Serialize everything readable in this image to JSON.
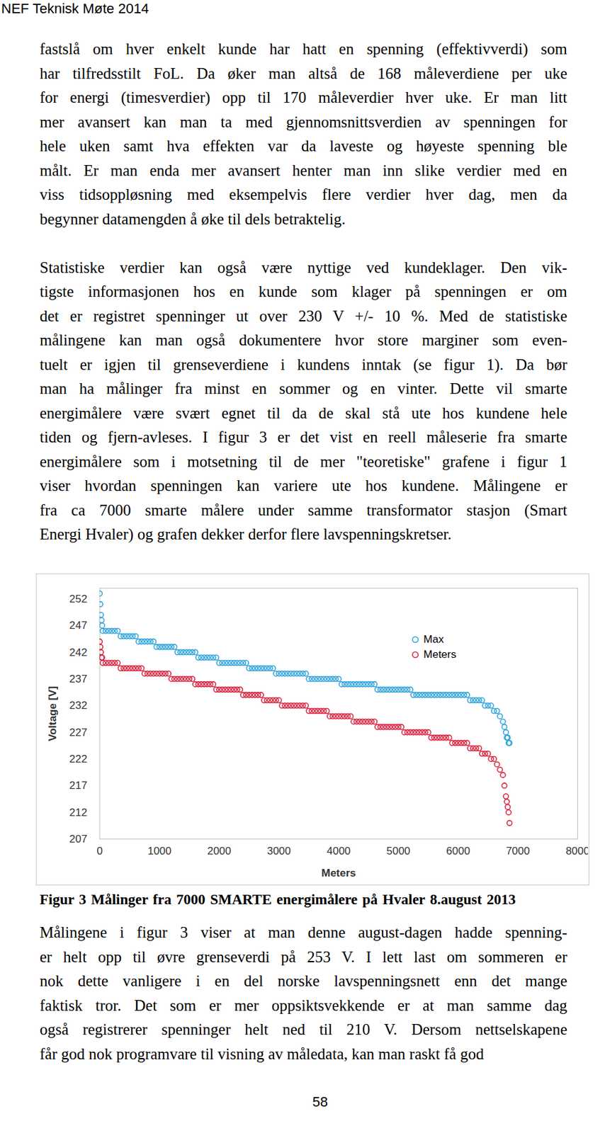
{
  "header": "NEF Teknisk Møte 2014",
  "paragraphs": [
    [
      "fastslå om hver enkelt kunde har hatt en spenning (effektivverdi) som",
      "har tilfredsstilt FoL. Da øker man altså de 168 måleverdiene per uke",
      "for energi (timesverdier) opp til 170 måleverdier hver uke. Er man litt",
      "mer avansert kan man ta med gjennomsnittsverdien av spenningen for",
      "hele uken samt hva effekten var da laveste og høyeste spenning ble",
      "målt. Er man enda mer avansert henter man inn slike verdier med en",
      "viss tidsoppløsning med eksempelvis flere verdier hver dag, men da",
      "begynner datamengden å øke til dels betraktelig."
    ],
    [
      "Statistiske verdier kan også være nyttige ved kundeklager. Den vik-",
      "tigste informasjonen hos en kunde som klager på spenningen er om",
      "det er registret spenninger ut over 230 V +/- 10 %. Med de statistiske",
      "målingene kan man også dokumentere hvor store marginer som even-",
      "tuelt er igjen til grenseverdiene i kundens inntak (se figur 1). Da bør",
      "man ha målinger fra minst en sommer og en vinter. Dette vil smarte",
      "energimålere være svært egnet til da de skal stå ute hos kundene hele",
      "tiden og fjern-avleses. I figur 3 er det vist en reell måleserie fra smarte",
      "energimålere som i motsetning til de mer \"teoretiske\" grafene i figur 1",
      "viser hvordan spenningen kan variere ute hos kundene. Målingene er",
      "fra ca 7000 smarte målere under samme transformator stasjon (Smart",
      "Energi Hvaler) og grafen dekker derfor flere lavspenningskretser."
    ]
  ],
  "chart_data": {
    "type": "scatter",
    "xlabel": "Meters",
    "ylabel": "Voltage [V]",
    "x": [
      0,
      10,
      20,
      30,
      40,
      50,
      100,
      150,
      200,
      250,
      300,
      350,
      400,
      450,
      500,
      550,
      600,
      650,
      700,
      750,
      800,
      850,
      900,
      950,
      1000,
      1050,
      1100,
      1150,
      1200,
      1250,
      1300,
      1350,
      1400,
      1450,
      1500,
      1550,
      1600,
      1650,
      1700,
      1750,
      1800,
      1850,
      1900,
      1950,
      2000,
      2050,
      2100,
      2150,
      2200,
      2250,
      2300,
      2350,
      2400,
      2450,
      2500,
      2550,
      2600,
      2650,
      2700,
      2750,
      2800,
      2850,
      2900,
      2950,
      3000,
      3050,
      3100,
      3150,
      3200,
      3250,
      3300,
      3350,
      3400,
      3450,
      3500,
      3550,
      3600,
      3650,
      3700,
      3750,
      3800,
      3850,
      3900,
      3950,
      4000,
      4050,
      4100,
      4150,
      4200,
      4250,
      4300,
      4350,
      4400,
      4450,
      4500,
      4550,
      4600,
      4650,
      4700,
      4750,
      4800,
      4850,
      4900,
      4950,
      5000,
      5050,
      5100,
      5150,
      5200,
      5250,
      5300,
      5350,
      5400,
      5450,
      5500,
      5550,
      5600,
      5650,
      5700,
      5750,
      5800,
      5850,
      5900,
      5950,
      6000,
      6050,
      6100,
      6150,
      6200,
      6250,
      6300,
      6350,
      6400,
      6450,
      6500,
      6550,
      6600,
      6650,
      6700,
      6750,
      6775,
      6800,
      6815,
      6830,
      6845,
      6860
    ],
    "series": [
      {
        "name": "Max",
        "color": "#2ea3dc",
        "marker": "circle",
        "values": [
          253,
          251,
          249,
          248,
          247,
          246,
          246,
          246,
          246,
          246,
          246,
          245,
          245,
          245,
          245,
          245,
          245,
          244,
          244,
          244,
          244,
          244,
          244,
          243,
          243,
          243,
          243,
          243,
          243,
          243,
          242,
          242,
          242,
          242,
          242,
          242,
          242,
          241,
          241,
          241,
          241,
          241,
          241,
          241,
          240,
          240,
          240,
          240,
          240,
          240,
          240,
          240,
          240,
          240,
          239,
          239,
          239,
          239,
          239,
          239,
          239,
          239,
          239,
          238,
          238,
          238,
          238,
          238,
          238,
          238,
          238,
          238,
          238,
          238,
          237,
          237,
          237,
          237,
          237,
          237,
          237,
          237,
          237,
          237,
          237,
          236,
          236,
          236,
          236,
          236,
          236,
          236,
          236,
          236,
          236,
          236,
          236,
          235,
          235,
          235,
          235,
          235,
          235,
          235,
          235,
          235,
          235,
          235,
          235,
          234,
          234,
          234,
          234,
          234,
          234,
          234,
          234,
          234,
          234,
          234,
          234,
          234,
          234,
          234,
          234,
          234,
          234,
          234,
          233,
          233,
          233,
          233,
          233,
          232,
          232,
          232,
          231,
          231,
          230,
          229,
          228,
          227,
          226,
          226,
          225,
          225
        ]
      },
      {
        "name": "Meters",
        "color": "#d9213c",
        "marker": "circle",
        "values": [
          244,
          243,
          242,
          241,
          241,
          240,
          240,
          240,
          240,
          240,
          240,
          239,
          239,
          239,
          239,
          239,
          239,
          239,
          239,
          238,
          238,
          238,
          238,
          238,
          238,
          238,
          238,
          238,
          237,
          237,
          237,
          237,
          237,
          237,
          237,
          237,
          236,
          236,
          236,
          236,
          236,
          236,
          236,
          235,
          235,
          235,
          235,
          235,
          235,
          235,
          235,
          235,
          234,
          234,
          234,
          234,
          234,
          234,
          234,
          233,
          233,
          233,
          233,
          233,
          233,
          232,
          232,
          232,
          232,
          232,
          232,
          232,
          232,
          232,
          231,
          231,
          231,
          231,
          231,
          231,
          231,
          230,
          230,
          230,
          230,
          230,
          230,
          230,
          230,
          229,
          229,
          229,
          229,
          229,
          229,
          229,
          229,
          228,
          228,
          228,
          228,
          228,
          228,
          228,
          228,
          228,
          227,
          227,
          227,
          227,
          227,
          227,
          227,
          227,
          227,
          226,
          226,
          226,
          226,
          226,
          226,
          226,
          225,
          225,
          225,
          225,
          225,
          225,
          224,
          224,
          224,
          224,
          223,
          223,
          223,
          222,
          222,
          221,
          220,
          219,
          217,
          215,
          214,
          213,
          212,
          210
        ]
      }
    ],
    "xlim": [
      0,
      8000
    ],
    "ylim": [
      207,
      254
    ],
    "xticks": [
      0,
      1000,
      2000,
      3000,
      4000,
      5000,
      6000,
      7000,
      8000
    ],
    "yticks": [
      207,
      212,
      217,
      222,
      227,
      232,
      237,
      242,
      247,
      252
    ],
    "grid": false,
    "legend": "top-right"
  },
  "caption": "Figur 3 Målinger fra 7000  SMARTE energimålere på Hvaler 8.august 2013",
  "paragraphs_after": [
    [
      "Målingene i figur 3 viser at man denne august-dagen hadde spenning-",
      "er helt opp til øvre grenseverdi på 253 V. I lett last om sommeren er",
      "nok dette vanligere i en del norske lavspenningsnett enn det mange",
      "faktisk tror. Det som er mer oppsiktsvekkende er at man samme dag",
      "også registrerer spenninger helt ned til 210 V. Dersom nettselskapene",
      "får god nok programvare til visning av måledata, kan man raskt få god"
    ]
  ],
  "page_number": 58
}
